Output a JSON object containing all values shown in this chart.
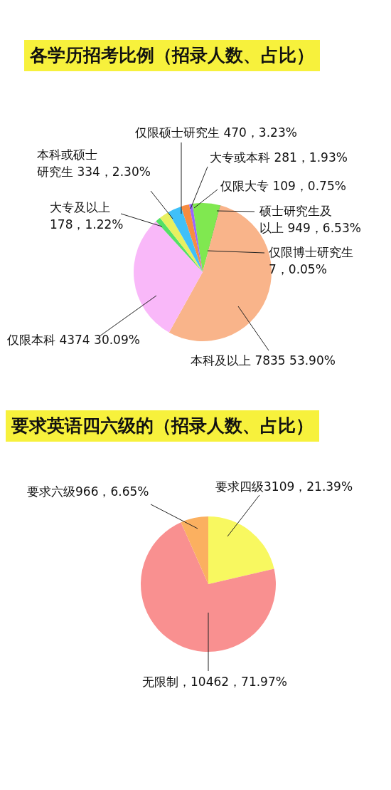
{
  "chart_data": [
    {
      "type": "pie",
      "title": "各学历招考比例（招录人数、占比）",
      "categories": [
        "硕士研究生及以上",
        "仅限博士研究生",
        "本科及以上",
        "仅限本科",
        "大专及以上",
        "本科或硕士研究生",
        "仅限硕士研究生",
        "大专或本科",
        "仅限大专"
      ],
      "values": [
        949,
        7,
        7835,
        4374,
        178,
        334,
        470,
        281,
        109
      ],
      "colors": [
        "#80e850",
        "#111111",
        "#f9b48a",
        "#f9b8f9",
        "#55e066",
        "#e8f060",
        "#40c0f8",
        "#f88c40",
        "#9966ff"
      ],
      "value_labels": [
        " 949，6.53%",
        " 7，0.05%",
        " 7835 53.90%",
        " 4374 30.09%",
        " 178，1.22%",
        " 334，2.30%",
        " 470，3.23%",
        " 281，1.93%",
        " 109，0.75%"
      ]
    },
    {
      "type": "pie",
      "title": "要求英语四六级的（招录人数、占比）",
      "categories": [
        "要求四级",
        "无限制",
        "要求六级"
      ],
      "values": [
        3109,
        10462,
        966
      ],
      "colors": [
        "#f8f860",
        "#f99090",
        "#fbb060"
      ],
      "value_labels": [
        "3109，21.39%",
        "，10462，71.97%",
        "966，6.65%"
      ]
    }
  ]
}
